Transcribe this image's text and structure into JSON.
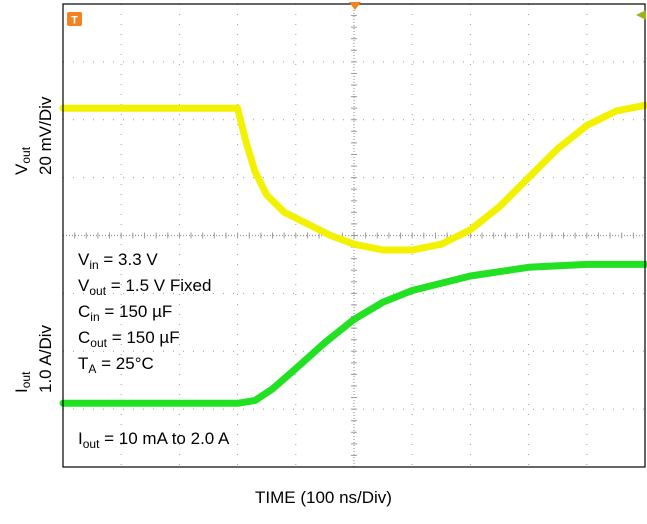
{
  "colors": {
    "channel1": "#f2f200",
    "channel2": "#22e022",
    "grid": "#9a9a9a",
    "frame": "#000000",
    "marker": "#f58220",
    "marker2": "#a0b020"
  },
  "markers": {
    "trigger_flag": "T"
  },
  "axes": {
    "x_label": "TIME (100 ns/Div)",
    "y_top": {
      "sym": "V",
      "sub": "out",
      "scale": "20 mV/Div"
    },
    "y_bottom": {
      "sym": "I",
      "sub": "out",
      "scale": "1.0 A/Div"
    }
  },
  "conditions": [
    {
      "sym": "V",
      "sub": "in",
      "rest": " = 3.3 V"
    },
    {
      "sym": "V",
      "sub": "out",
      "rest": " = 1.5 V Fixed"
    },
    {
      "sym": "C",
      "sub": "in",
      "rest": " = 150 µF"
    },
    {
      "sym": "C",
      "sub": "out",
      "rest": " = 150 µF"
    },
    {
      "sym": "T",
      "sub": "A",
      "rest": " = 25°C"
    }
  ],
  "load_step": {
    "sym": "I",
    "sub": "out",
    "rest": " = 10 mA to 2.0 A"
  },
  "chart_data": {
    "type": "line",
    "grid": true,
    "x_divisions": 10,
    "y_divisions": 8,
    "xlabel": "TIME (100 ns/Div)",
    "series": [
      {
        "name": "Vout",
        "unit_per_div": "20 mV/Div",
        "x_div": [
          0,
          1,
          2,
          3,
          3.05,
          3.15,
          3.3,
          3.5,
          3.8,
          4.2,
          4.6,
          5,
          5.5,
          6,
          6.5,
          7,
          7.5,
          8,
          8.5,
          9,
          9.5,
          10
        ],
        "y_div": [
          6.2,
          6.2,
          6.2,
          6.2,
          6.0,
          5.6,
          5.1,
          4.7,
          4.4,
          4.2,
          4.0,
          3.85,
          3.75,
          3.75,
          3.85,
          4.1,
          4.5,
          5.0,
          5.5,
          5.9,
          6.15,
          6.25
        ]
      },
      {
        "name": "Iout",
        "unit_per_div": "1.0 A/Div",
        "x_div": [
          0,
          1,
          2,
          3,
          3.3,
          3.6,
          4,
          4.5,
          5,
          5.5,
          6,
          7,
          8,
          9,
          10
        ],
        "y_div": [
          1.1,
          1.1,
          1.1,
          1.1,
          1.15,
          1.35,
          1.7,
          2.15,
          2.55,
          2.85,
          3.05,
          3.3,
          3.45,
          3.5,
          3.5
        ]
      }
    ]
  }
}
